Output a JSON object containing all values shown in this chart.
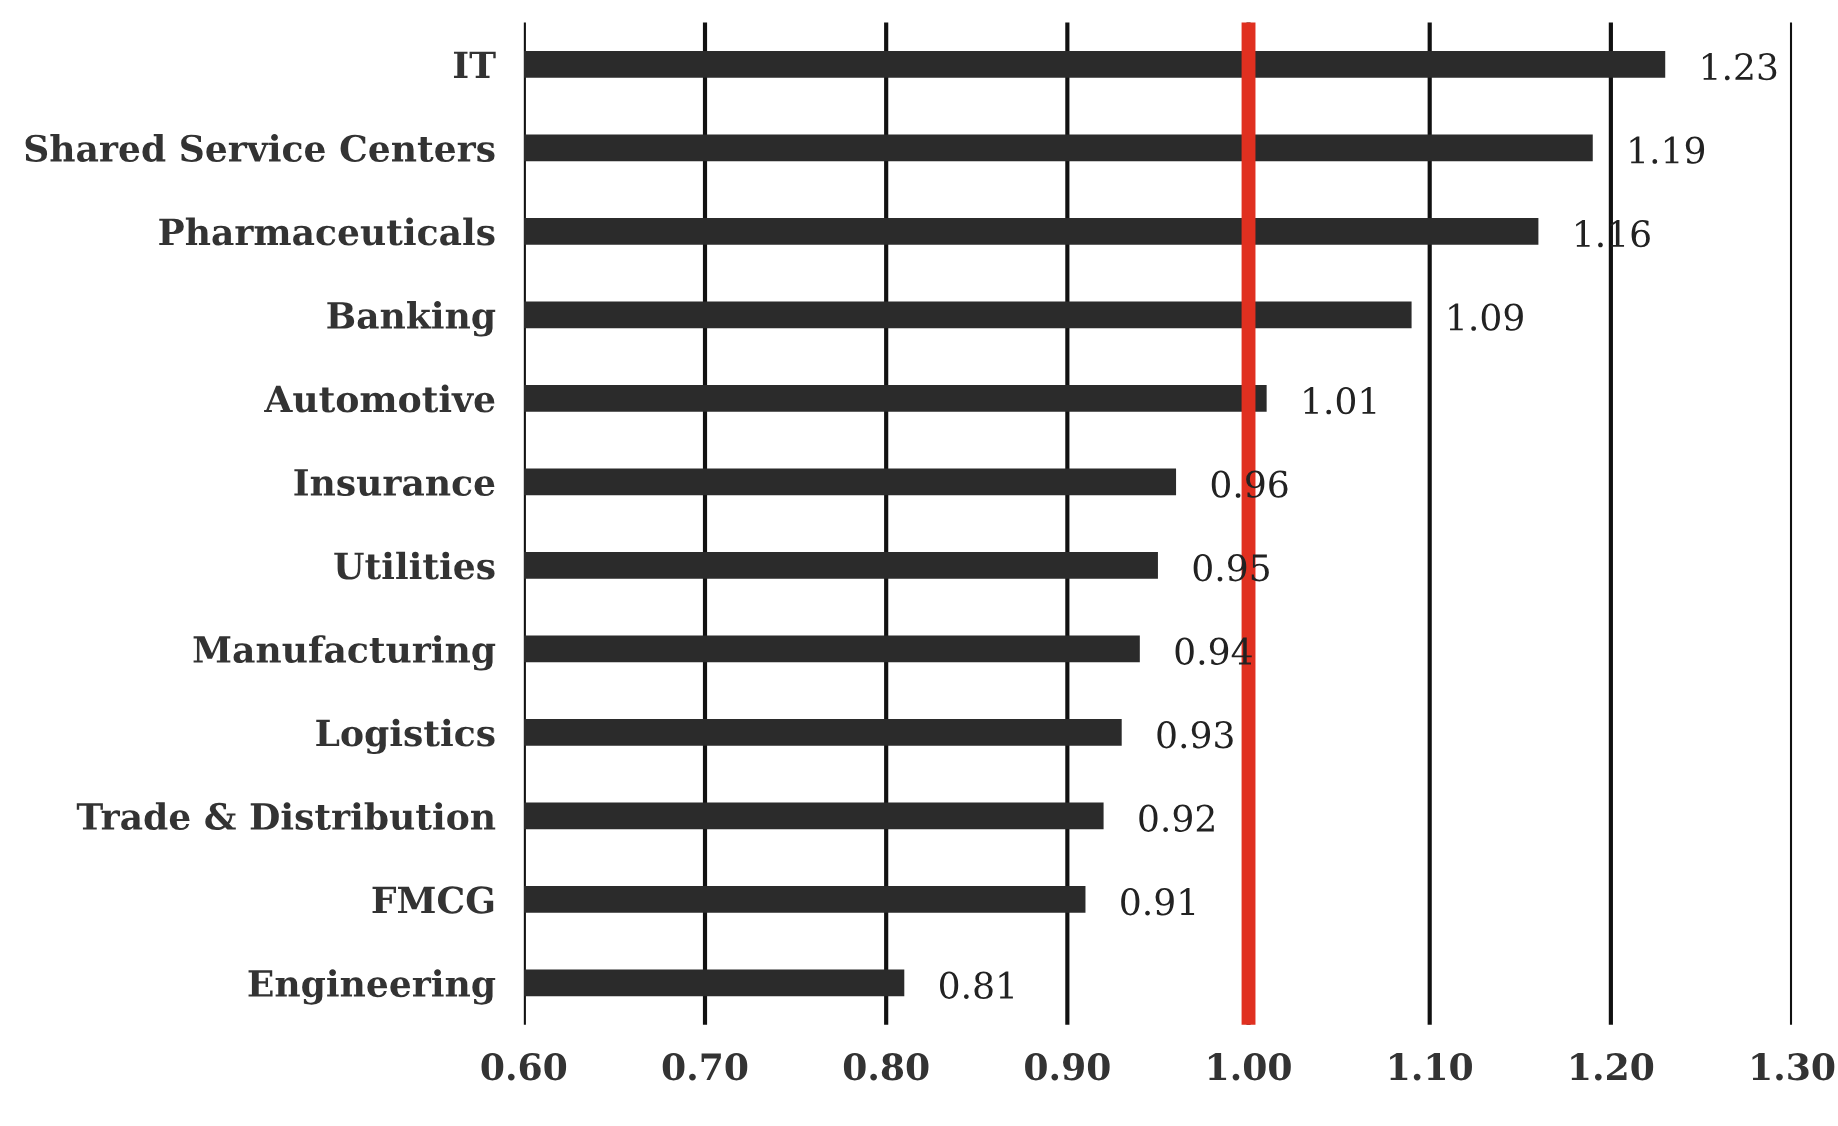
{
  "chart_data": {
    "type": "bar",
    "orientation": "horizontal",
    "categories": [
      "IT",
      "Shared Service Centers",
      "Pharmaceuticals",
      "Banking",
      "Automotive",
      "Insurance",
      "Utilities",
      "Manufacturing",
      "Logistics",
      "Trade & Distribution",
      "FMCG",
      "Engineering"
    ],
    "values": [
      1.23,
      1.19,
      1.16,
      1.09,
      1.01,
      0.96,
      0.95,
      0.94,
      0.93,
      0.92,
      0.91,
      0.81
    ],
    "value_labels": [
      "1.23",
      "1.19",
      "1.16",
      "1.09",
      "1.01",
      "0.96",
      "0.95",
      "0.94",
      "0.93",
      "0.92",
      "0.91",
      "0.81"
    ],
    "color": "#2b2b2b",
    "xlim": [
      0.6,
      1.3
    ],
    "xticks": [
      {
        "value": 0.6,
        "label": "0.60"
      },
      {
        "value": 0.7,
        "label": "0.70"
      },
      {
        "value": 0.8,
        "label": "0.80"
      },
      {
        "value": 0.9,
        "label": "0.90"
      },
      {
        "value": 1.0,
        "label": "1.00"
      },
      {
        "value": 1.1,
        "label": "1.10"
      },
      {
        "value": 1.2,
        "label": "1.20"
      },
      {
        "value": 1.3,
        "label": "1.30"
      }
    ],
    "grid": "x",
    "ref_lines": [
      {
        "axis": "x",
        "value": 1.0,
        "color": "#e03020"
      }
    ]
  }
}
